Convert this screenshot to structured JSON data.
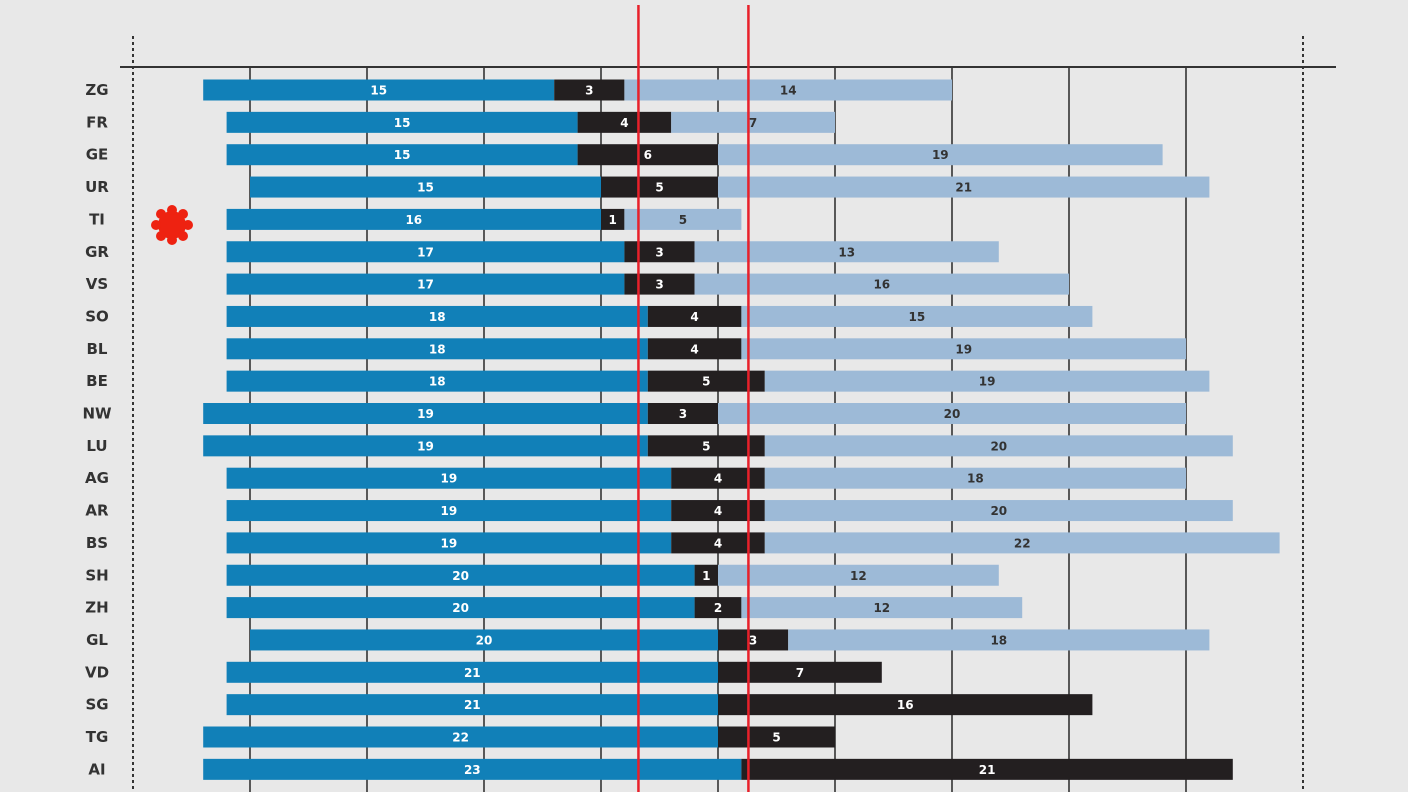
{
  "chart_data": {
    "type": "bar",
    "stacked": true,
    "orientation": "horizontal",
    "categories": [
      "ZG",
      "FR",
      "GE",
      "UR",
      "TI",
      "GR",
      "VS",
      "SO",
      "BL",
      "BE",
      "NW",
      "LU",
      "AG",
      "AR",
      "BS",
      "SH",
      "ZH",
      "GL",
      "VD",
      "SG",
      "TG",
      "AI"
    ],
    "series": [
      {
        "values": [
          15,
          15,
          15,
          15,
          16,
          17,
          17,
          18,
          18,
          18,
          19,
          19,
          19,
          19,
          19,
          20,
          20,
          20,
          21,
          21,
          22,
          23
        ]
      },
      {
        "values": [
          3,
          4,
          6,
          5,
          1,
          3,
          3,
          4,
          4,
          5,
          3,
          5,
          4,
          4,
          4,
          1,
          2,
          3,
          7,
          16,
          5,
          21
        ]
      },
      {
        "values": [
          14,
          7,
          19,
          21,
          5,
          13,
          16,
          15,
          19,
          19,
          20,
          20,
          18,
          20,
          22,
          12,
          12,
          18,
          null,
          null,
          null,
          null
        ]
      }
    ],
    "series_starts": [
      -2,
      -1,
      -1,
      0,
      -1,
      -1,
      -1,
      -1,
      -1,
      -1,
      -2,
      -2,
      -1,
      -1,
      -1,
      -1,
      -1,
      0,
      -1,
      -1,
      -2,
      -2
    ],
    "xlim": [
      -5,
      50
    ],
    "reference_lines": [
      16.6,
      21.3
    ],
    "grid": true,
    "colors": {
      "series1": "#1180b8",
      "series2": "#231f20",
      "series3": "#9dbad7",
      "reference": "#e8202a",
      "marker": "#ee2211",
      "background": "#e8e8e8"
    }
  }
}
